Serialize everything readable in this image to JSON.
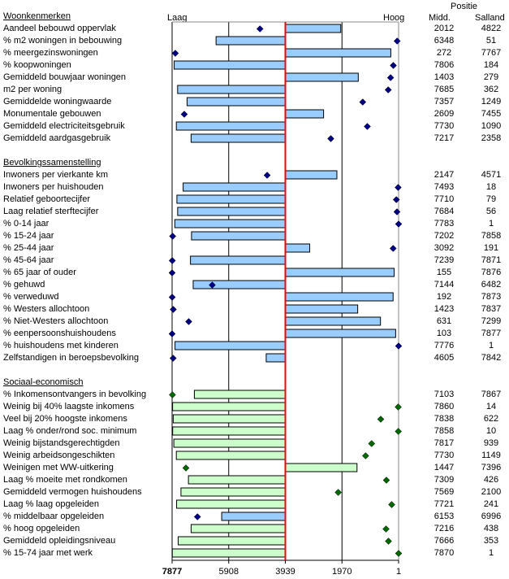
{
  "header": {
    "low_label": "Laag",
    "high_label": "Hoog",
    "positie_label": "Positie",
    "midd_label": "Midd.",
    "salland_label": "Salland"
  },
  "colors": {
    "blue_bar": "#99CCFF",
    "green_bar": "#CCFFCC",
    "blue_marker": "#000080",
    "green_marker": "#006600",
    "median_line": "#FF0000"
  },
  "chart_data": {
    "type": "bar",
    "title": "",
    "xlabel": "",
    "ylabel": "",
    "axis": {
      "reversed": true,
      "min": 1,
      "max": 7877,
      "center": 3939,
      "ticks": [
        "7877",
        "5908",
        "3939",
        "1970",
        "1"
      ]
    },
    "legend": "none",
    "sections": [
      {
        "title": "Woonkenmerken",
        "rows": [
          {
            "label": "Aandeel bebouwd oppervlak",
            "midd": 2012,
            "salland": 4822,
            "color": "blue"
          },
          {
            "label": "% m2 woningen in bebouwing",
            "midd": 6348,
            "salland": 51,
            "color": "blue"
          },
          {
            "label": "% meergezinswoningen",
            "midd": 272,
            "salland": 7767,
            "color": "blue"
          },
          {
            "label": "% koopwoningen",
            "midd": 7806,
            "salland": 184,
            "color": "blue"
          },
          {
            "label": "Gemiddeld bouwjaar woningen",
            "midd": 1403,
            "salland": 279,
            "color": "blue"
          },
          {
            "label": "m2 per woning",
            "midd": 7685,
            "salland": 362,
            "color": "blue"
          },
          {
            "label": "Gemiddelde woningwaarde",
            "midd": 7357,
            "salland": 1249,
            "color": "blue"
          },
          {
            "label": "Monumentale gebouwen",
            "midd": 2609,
            "salland": 7455,
            "color": "blue"
          },
          {
            "label": "Gemiddeld electriciteitsgebruik",
            "midd": 7730,
            "salland": 1090,
            "color": "blue"
          },
          {
            "label": "Gemiddeld aardgasgebruik",
            "midd": 7217,
            "salland": 2358,
            "color": "blue"
          }
        ]
      },
      {
        "title": "Bevolkingssamenstelling",
        "rows": [
          {
            "label": "Inwoners per vierkante km",
            "midd": 2147,
            "salland": 4571,
            "color": "blue"
          },
          {
            "label": "Inwoners per huishouden",
            "midd": 7493,
            "salland": 18,
            "color": "blue"
          },
          {
            "label": "Relatief geboortecijfer",
            "midd": 7710,
            "salland": 79,
            "color": "blue"
          },
          {
            "label": "Laag relatief sterftecijfer",
            "midd": 7684,
            "salland": 56,
            "color": "blue"
          },
          {
            "label": "% 0-14 jaar",
            "midd": 7783,
            "salland": 1,
            "color": "blue"
          },
          {
            "label": "% 15-24 jaar",
            "midd": 7202,
            "salland": 7858,
            "color": "blue"
          },
          {
            "label": "% 25-44 jaar",
            "midd": 3092,
            "salland": 191,
            "color": "blue"
          },
          {
            "label": "% 45-64 jaar",
            "midd": 7239,
            "salland": 7871,
            "color": "blue"
          },
          {
            "label": "% 65 jaar of ouder",
            "midd": 155,
            "salland": 7876,
            "color": "blue"
          },
          {
            "label": "% gehuwd",
            "midd": 7144,
            "salland": 6482,
            "color": "blue"
          },
          {
            "label": "% verweduwd",
            "midd": 192,
            "salland": 7873,
            "color": "blue"
          },
          {
            "label": "% Westers allochtoon",
            "midd": 1423,
            "salland": 7837,
            "color": "blue"
          },
          {
            "label": "% Niet-Westers allochtoon",
            "midd": 631,
            "salland": 7299,
            "color": "blue"
          },
          {
            "label": "% eenpersoonshuishoudens",
            "midd": 103,
            "salland": 7877,
            "color": "blue"
          },
          {
            "label": "% huishoudens met kinderen",
            "midd": 7776,
            "salland": 1,
            "color": "blue"
          },
          {
            "label": "Zelfstandigen in beroepsbevolking",
            "midd": 4605,
            "salland": 7842,
            "color": "blue"
          }
        ]
      },
      {
        "title": "Sociaal-economisch",
        "rows": [
          {
            "label": "% Inkomensontvangers in bevolking",
            "midd": 7103,
            "salland": 7867,
            "color": "green"
          },
          {
            "label": "Weinig bij 40% laagste inkomens",
            "midd": 7860,
            "salland": 14,
            "color": "green"
          },
          {
            "label": "Veel bij 20% hoogste inkomens",
            "midd": 7838,
            "salland": 622,
            "color": "green"
          },
          {
            "label": "Laag % onder/rond soc. minimum",
            "midd": 7858,
            "salland": 10,
            "color": "green"
          },
          {
            "label": "Weinig bijstandsgerechtigden",
            "midd": 7817,
            "salland": 939,
            "color": "green"
          },
          {
            "label": "Weinig arbeidsongeschikten",
            "midd": 7730,
            "salland": 1149,
            "color": "green"
          },
          {
            "label": "Weinigen met WW-uitkering",
            "midd": 1447,
            "salland": 7396,
            "color": "green"
          },
          {
            "label": "Laag % moeite met rondkomen",
            "midd": 7309,
            "salland": 426,
            "color": "green"
          },
          {
            "label": "Gemiddeld vermogen huishoudens",
            "midd": 7569,
            "salland": 2100,
            "color": "green"
          },
          {
            "label": "Laag % laag opgeleiden",
            "midd": 7721,
            "salland": 241,
            "color": "green"
          },
          {
            "label": "% middelbaar opgeleiden",
            "midd": 6153,
            "salland": 6996,
            "color": "blue"
          },
          {
            "label": "% hoog opgeleiden",
            "midd": 7216,
            "salland": 438,
            "color": "green"
          },
          {
            "label": "Gemiddeld opleidingsniveau",
            "midd": 7666,
            "salland": 353,
            "color": "green"
          },
          {
            "label": "% 15-74 jaar met werk",
            "midd": 7870,
            "salland": 1,
            "color": "green"
          }
        ]
      }
    ]
  }
}
